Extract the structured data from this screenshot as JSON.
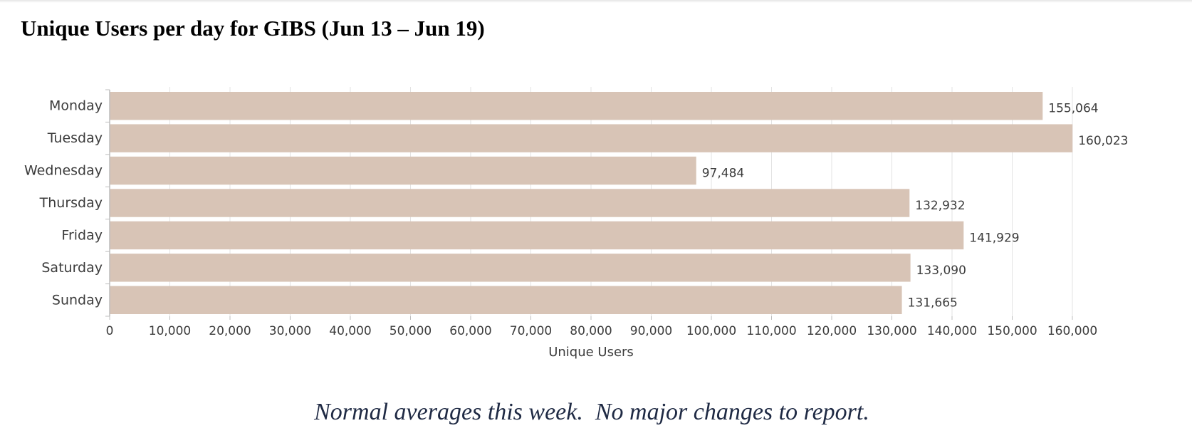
{
  "title": "Unique Users per day for GIBS (Jun 13 – Jun 19)",
  "caption": "Normal averages this week.  No major changes to report.",
  "chart_data": {
    "type": "bar",
    "orientation": "horizontal",
    "title": "",
    "xlabel": "Unique Users",
    "ylabel": "",
    "categories": [
      "Monday",
      "Tuesday",
      "Wednesday",
      "Thursday",
      "Friday",
      "Saturday",
      "Sunday"
    ],
    "values": [
      155064,
      160023,
      97484,
      132932,
      141929,
      133090,
      131665
    ],
    "value_labels": [
      "155,064",
      "160,023",
      "97,484",
      "132,932",
      "141,929",
      "133,090",
      "131,665"
    ],
    "xlim": [
      0,
      160000
    ],
    "xticks": [
      0,
      10000,
      20000,
      30000,
      40000,
      50000,
      60000,
      70000,
      80000,
      90000,
      100000,
      110000,
      120000,
      130000,
      140000,
      150000,
      160000
    ],
    "xtick_labels": [
      "0",
      "10,000",
      "20,000",
      "30,000",
      "40,000",
      "50,000",
      "60,000",
      "70,000",
      "80,000",
      "90,000",
      "100,000",
      "110,000",
      "120,000",
      "130,000",
      "140,000",
      "150,000",
      "160,000"
    ],
    "grid": true,
    "legend": "none",
    "bar_color": "#d8c4b6",
    "grid_color": "#e3e3e3",
    "axis_color": "#bdbdbd"
  }
}
